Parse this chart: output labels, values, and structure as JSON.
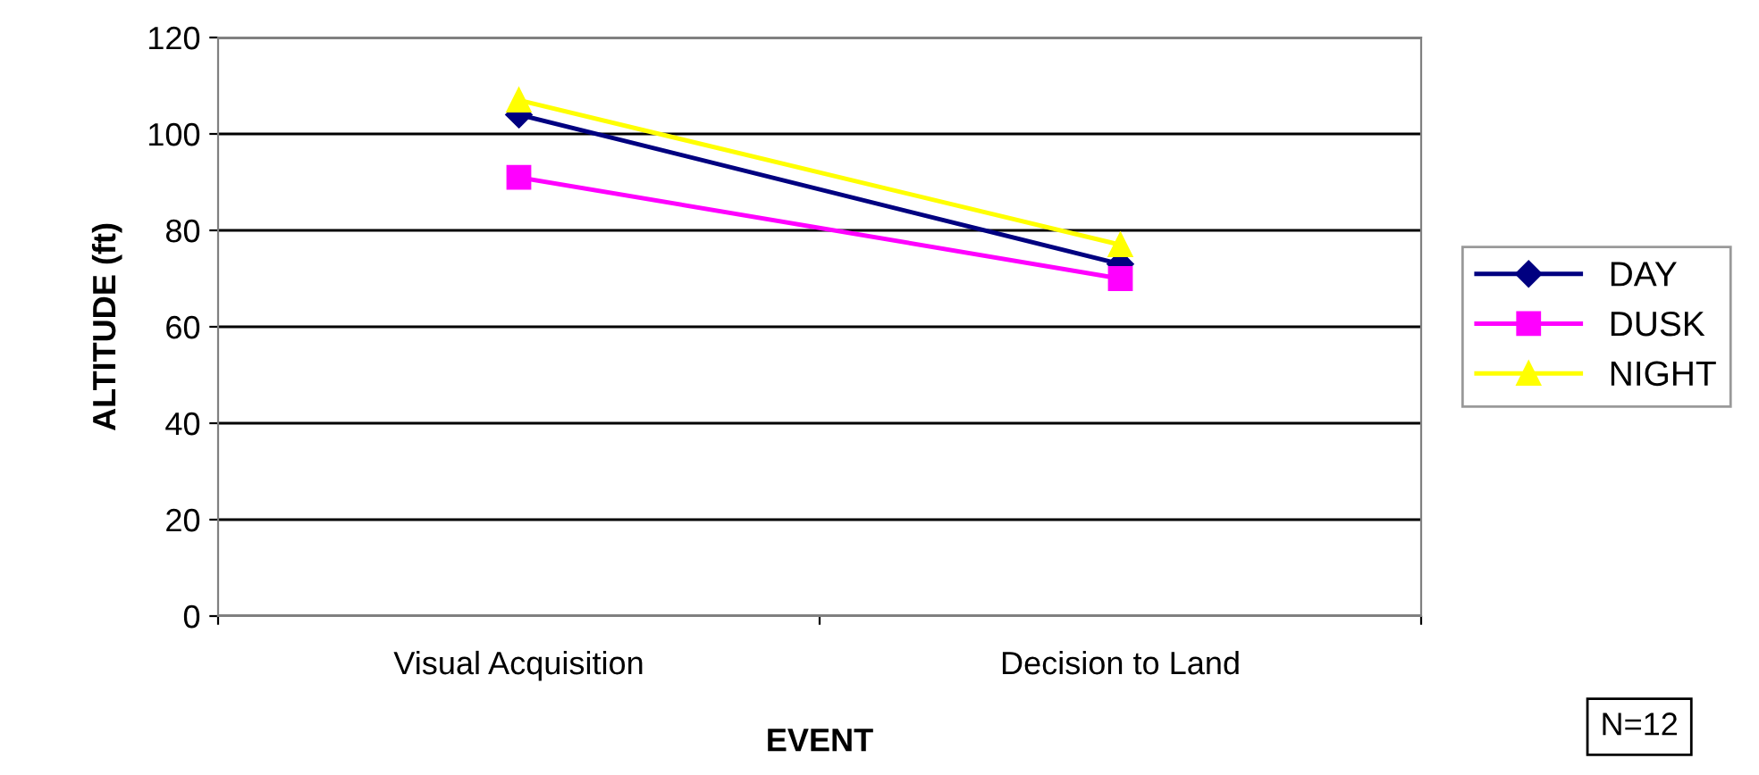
{
  "chart_data": {
    "type": "line",
    "xlabel": "EVENT",
    "ylabel": "ALTITUDE (ft)",
    "categories": [
      "Visual Acquisition",
      "Decision to Land"
    ],
    "series": [
      {
        "name": "DAY",
        "color": "#000080",
        "marker": "diamond",
        "values": [
          104,
          73
        ]
      },
      {
        "name": "DUSK",
        "color": "#ff00ff",
        "marker": "square",
        "values": [
          91,
          70
        ]
      },
      {
        "name": "NIGHT",
        "color": "#ffff00",
        "marker": "triangle",
        "values": [
          107,
          77
        ]
      }
    ],
    "ylim": [
      0,
      120
    ],
    "yticks": [
      0,
      20,
      40,
      60,
      80,
      100,
      120
    ],
    "grid": "y",
    "legend": "right",
    "annotations": [
      "N=12"
    ]
  }
}
